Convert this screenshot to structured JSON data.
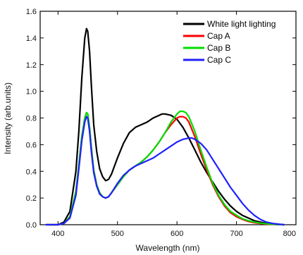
{
  "chart_data": {
    "type": "line",
    "title": "",
    "xlabel": "Wavelength (nm)",
    "ylabel": "Intensity (arb.units)",
    "xlim": [
      370,
      800
    ],
    "ylim": [
      0,
      1.6
    ],
    "x_ticks": [
      400,
      500,
      600,
      700,
      800
    ],
    "x_tick_labels": [
      "400",
      "500",
      "600",
      "700",
      "800"
    ],
    "y_ticks": [
      0,
      0.2,
      0.4,
      0.6,
      0.8,
      1.0,
      1.2,
      1.4,
      1.6
    ],
    "y_tick_labels": [
      "0.0",
      "0.2",
      "0.4",
      "0.6",
      "0.8",
      "1.0",
      "1.2",
      "1.4",
      "1.6"
    ],
    "grid": false,
    "legend_position": "top-right",
    "series": [
      {
        "name": "White light lighting",
        "color": "#000000",
        "x": [
          380,
          400,
          410,
          420,
          430,
          435,
          440,
          445,
          448,
          450,
          453,
          456,
          460,
          465,
          470,
          475,
          480,
          485,
          490,
          500,
          510,
          520,
          530,
          540,
          550,
          560,
          570,
          575,
          580,
          590,
          600,
          610,
          620,
          630,
          640,
          650,
          660,
          670,
          680,
          690,
          700,
          710,
          720,
          730,
          740,
          750,
          760,
          770,
          780
        ],
        "y": [
          0,
          0,
          0.02,
          0.1,
          0.4,
          0.7,
          1.1,
          1.4,
          1.47,
          1.45,
          1.3,
          1.05,
          0.75,
          0.55,
          0.42,
          0.36,
          0.33,
          0.34,
          0.38,
          0.5,
          0.61,
          0.69,
          0.73,
          0.75,
          0.77,
          0.8,
          0.82,
          0.83,
          0.83,
          0.82,
          0.79,
          0.73,
          0.65,
          0.56,
          0.47,
          0.39,
          0.32,
          0.25,
          0.19,
          0.14,
          0.1,
          0.07,
          0.05,
          0.03,
          0.02,
          0.01,
          0.005,
          0.002,
          0
        ]
      },
      {
        "name": "Cap A",
        "color": "#ff0000",
        "x": [
          380,
          400,
          410,
          420,
          430,
          435,
          440,
          445,
          448,
          450,
          453,
          456,
          460,
          465,
          470,
          475,
          480,
          485,
          490,
          500,
          510,
          520,
          530,
          540,
          550,
          560,
          570,
          580,
          590,
          600,
          605,
          610,
          615,
          620,
          630,
          640,
          650,
          660,
          670,
          680,
          690,
          700,
          710,
          720,
          730,
          740,
          750,
          760,
          770,
          780
        ],
        "y": [
          0,
          0,
          0.01,
          0.06,
          0.25,
          0.45,
          0.66,
          0.8,
          0.84,
          0.83,
          0.73,
          0.58,
          0.41,
          0.3,
          0.24,
          0.21,
          0.2,
          0.21,
          0.24,
          0.3,
          0.36,
          0.41,
          0.44,
          0.47,
          0.51,
          0.56,
          0.62,
          0.69,
          0.75,
          0.8,
          0.81,
          0.81,
          0.8,
          0.77,
          0.66,
          0.53,
          0.41,
          0.3,
          0.21,
          0.14,
          0.09,
          0.06,
          0.04,
          0.025,
          0.015,
          0.01,
          0.005,
          0.003,
          0.001,
          0
        ]
      },
      {
        "name": "Cap B",
        "color": "#00dd00",
        "x": [
          380,
          400,
          410,
          420,
          430,
          435,
          440,
          445,
          448,
          450,
          453,
          456,
          460,
          465,
          470,
          475,
          480,
          485,
          490,
          500,
          510,
          520,
          530,
          540,
          550,
          560,
          570,
          580,
          590,
          600,
          605,
          610,
          615,
          620,
          630,
          640,
          650,
          660,
          670,
          680,
          690,
          700,
          710,
          720,
          730,
          740,
          750,
          760,
          770,
          780
        ],
        "y": [
          0,
          0,
          0.01,
          0.06,
          0.25,
          0.45,
          0.66,
          0.8,
          0.84,
          0.83,
          0.73,
          0.58,
          0.41,
          0.3,
          0.24,
          0.21,
          0.2,
          0.21,
          0.24,
          0.3,
          0.36,
          0.41,
          0.44,
          0.47,
          0.51,
          0.56,
          0.62,
          0.69,
          0.77,
          0.83,
          0.85,
          0.85,
          0.84,
          0.81,
          0.7,
          0.56,
          0.43,
          0.31,
          0.22,
          0.15,
          0.1,
          0.07,
          0.045,
          0.03,
          0.02,
          0.012,
          0.007,
          0.004,
          0.002,
          0
        ]
      },
      {
        "name": "Cap C",
        "color": "#2020ff",
        "x": [
          380,
          400,
          410,
          420,
          430,
          435,
          440,
          445,
          448,
          450,
          453,
          456,
          460,
          465,
          470,
          475,
          480,
          485,
          490,
          500,
          510,
          520,
          530,
          540,
          550,
          560,
          570,
          580,
          590,
          600,
          610,
          620,
          625,
          630,
          640,
          650,
          660,
          670,
          680,
          690,
          700,
          710,
          720,
          730,
          740,
          750,
          760,
          770,
          780
        ],
        "y": [
          0,
          0,
          0.01,
          0.05,
          0.22,
          0.42,
          0.63,
          0.77,
          0.81,
          0.8,
          0.7,
          0.55,
          0.39,
          0.29,
          0.23,
          0.21,
          0.2,
          0.21,
          0.24,
          0.31,
          0.37,
          0.41,
          0.44,
          0.46,
          0.48,
          0.5,
          0.53,
          0.56,
          0.59,
          0.62,
          0.64,
          0.65,
          0.65,
          0.64,
          0.61,
          0.56,
          0.49,
          0.42,
          0.35,
          0.28,
          0.22,
          0.16,
          0.11,
          0.07,
          0.04,
          0.02,
          0.01,
          0.005,
          0
        ]
      }
    ]
  }
}
